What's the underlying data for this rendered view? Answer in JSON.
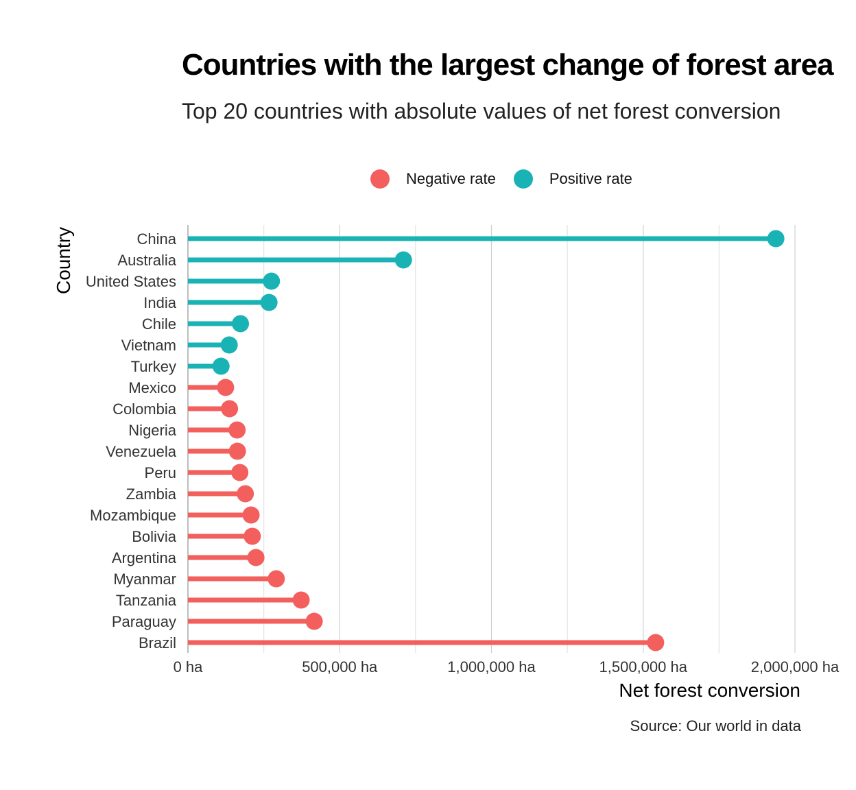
{
  "title": "Countries with the largest change of forest area",
  "subtitle": "Top 20 countries with absolute values of net forest conversion",
  "legend": [
    {
      "label": "Negative rate",
      "color": "#F25F5C"
    },
    {
      "label": "Positive rate",
      "color": "#19B2B5"
    }
  ],
  "source": "Source: Our world in data",
  "chart_data": {
    "type": "lollipop",
    "xlabel": "Net forest conversion",
    "ylabel": "Country",
    "xlim": [
      0,
      2000000
    ],
    "x_ticks": [
      0,
      500000,
      1000000,
      1500000,
      2000000
    ],
    "x_tick_labels": [
      "0 ha",
      "500,000 ha",
      "1,000,000 ha",
      "1,500,000 ha",
      "2,000,000 ha"
    ],
    "grid": true,
    "legend_position": "top",
    "categories": [
      "China",
      "Australia",
      "United States",
      "India",
      "Chile",
      "Vietnam",
      "Turkey",
      "Mexico",
      "Colombia",
      "Nigeria",
      "Venezuela",
      "Peru",
      "Zambia",
      "Mozambique",
      "Bolivia",
      "Argentina",
      "Myanmar",
      "Tanzania",
      "Paraguay",
      "Brazil"
    ],
    "values": [
      1937000,
      710000,
      275000,
      267000,
      173000,
      136000,
      109000,
      124000,
      137000,
      162000,
      163000,
      171000,
      189000,
      208000,
      212000,
      224000,
      291000,
      373000,
      416000,
      1541000
    ],
    "rate": [
      "Positive rate",
      "Positive rate",
      "Positive rate",
      "Positive rate",
      "Positive rate",
      "Positive rate",
      "Positive rate",
      "Negative rate",
      "Negative rate",
      "Negative rate",
      "Negative rate",
      "Negative rate",
      "Negative rate",
      "Negative rate",
      "Negative rate",
      "Negative rate",
      "Negative rate",
      "Negative rate",
      "Negative rate",
      "Negative rate"
    ]
  }
}
